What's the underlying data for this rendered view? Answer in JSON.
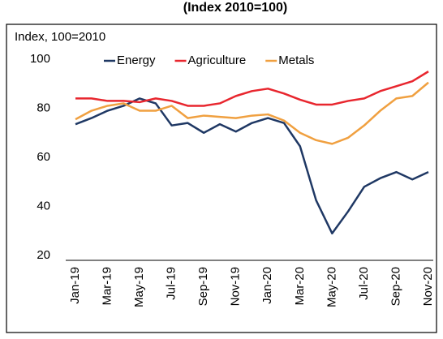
{
  "chart_data": {
    "type": "line",
    "title": "(Index 2010=100)",
    "y_axis_label": "Index, 100=2010",
    "categories": [
      "Jan-19",
      null,
      "Mar-19",
      null,
      "May-19",
      null,
      "Jul-19",
      null,
      "Sep-19",
      null,
      "Nov-19",
      null,
      "Jan-20",
      null,
      "Mar-20",
      null,
      "May-20",
      null,
      "Jul-20",
      null,
      "Sep-20",
      null,
      "Nov-20"
    ],
    "series": [
      {
        "name": "Energy",
        "color": "#1f3864",
        "values": [
          73.5,
          76,
          79,
          81,
          84,
          82,
          73,
          74,
          70,
          73.5,
          70.5,
          74,
          76,
          74,
          64.5,
          42.5,
          29,
          38,
          48,
          51.5,
          54,
          51,
          54
        ]
      },
      {
        "name": "Agriculture",
        "color": "#e8262e",
        "values": [
          84,
          84,
          83,
          83,
          82.5,
          84,
          83,
          81,
          81,
          82,
          85,
          87,
          88,
          86,
          83.5,
          81.5,
          81.5,
          83,
          84,
          87,
          89,
          91,
          95
        ]
      },
      {
        "name": "Metals",
        "color": "#f0a040",
        "values": [
          75.5,
          79,
          81,
          82,
          79,
          79,
          81,
          76,
          77,
          76.5,
          76,
          77,
          77.5,
          75,
          70,
          67,
          65.5,
          68,
          73,
          79,
          84,
          85,
          90.5
        ]
      }
    ],
    "ylim": [
      20,
      100
    ],
    "yticks": [
      20,
      40,
      60,
      80,
      100
    ],
    "grid": false,
    "legend": "top"
  }
}
